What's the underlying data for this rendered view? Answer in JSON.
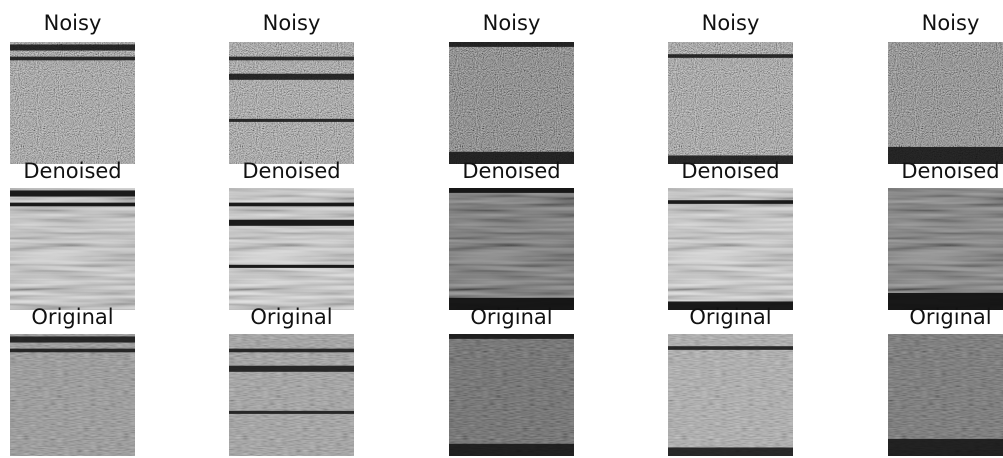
{
  "rows": [
    {
      "cells": [
        {
          "title": "Noisy"
        },
        {
          "title": "Noisy"
        },
        {
          "title": "Noisy"
        },
        {
          "title": "Noisy"
        },
        {
          "title": "Noisy"
        }
      ]
    },
    {
      "cells": [
        {
          "title": "Denoised"
        },
        {
          "title": "Denoised"
        },
        {
          "title": "Denoised"
        },
        {
          "title": "Denoised"
        },
        {
          "title": "Denoised"
        }
      ]
    },
    {
      "cells": [
        {
          "title": "Original"
        },
        {
          "title": "Original"
        },
        {
          "title": "Original"
        },
        {
          "title": "Original"
        },
        {
          "title": "Original"
        }
      ]
    }
  ]
}
